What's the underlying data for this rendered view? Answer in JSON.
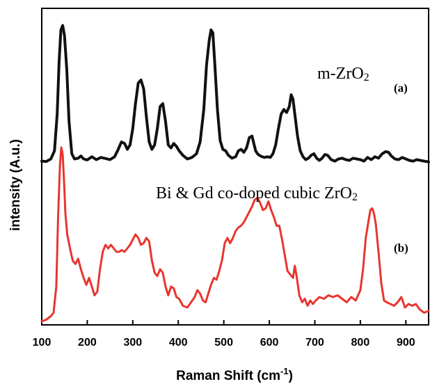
{
  "chart_data": {
    "type": "line",
    "xlabel": "Raman Shift (cm",
    "xlabel_sup": "-1",
    "xlabel_end": ")",
    "ylabel": "intensity (A.u.)",
    "xlim": [
      100,
      950
    ],
    "x_ticks": [
      "100",
      "200",
      "300",
      "400",
      "500",
      "600",
      "700",
      "800",
      "900"
    ],
    "y_ticks_shown": false,
    "annotations": {
      "a_name_main": "m-ZrO",
      "a_name_sub": "2",
      "a_label": "(a)",
      "b_name_main": "Bi & Gd co-doped cubic ZrO",
      "b_name_sub": "2",
      "b_label": "(b)"
    },
    "series": [
      {
        "color": "#111111",
        "x": [
          100,
          110,
          120,
          128,
          134,
          138,
          142,
          146,
          150,
          155,
          160,
          166,
          172,
          180,
          186,
          192,
          200,
          210,
          220,
          230,
          240,
          250,
          260,
          268,
          275,
          282,
          288,
          294,
          300,
          306,
          312,
          318,
          324,
          330,
          336,
          342,
          348,
          354,
          360,
          366,
          372,
          378,
          384,
          390,
          396,
          402,
          410,
          420,
          430,
          440,
          448,
          456,
          462,
          468,
          472,
          476,
          480,
          486,
          492,
          498,
          504,
          510,
          518,
          526,
          532,
          538,
          544,
          550,
          556,
          562,
          566,
          570,
          574,
          578,
          584,
          590,
          596,
          602,
          608,
          614,
          620,
          626,
          632,
          638,
          644,
          648,
          652,
          656,
          662,
          668,
          674,
          680,
          686,
          692,
          698,
          704,
          710,
          716,
          722,
          728,
          736,
          744,
          752,
          760,
          768,
          776,
          784,
          792,
          800,
          808,
          816,
          824,
          832,
          840,
          848,
          856,
          862,
          868,
          876,
          884,
          892,
          900,
          908,
          916,
          924,
          932,
          940,
          950
        ],
        "y": [
          0.03,
          0.028,
          0.045,
          0.1,
          0.35,
          0.7,
          0.92,
          0.95,
          0.88,
          0.65,
          0.3,
          0.08,
          0.045,
          0.05,
          0.065,
          0.045,
          0.038,
          0.06,
          0.04,
          0.055,
          0.048,
          0.04,
          0.06,
          0.11,
          0.16,
          0.15,
          0.11,
          0.14,
          0.25,
          0.42,
          0.56,
          0.58,
          0.52,
          0.33,
          0.16,
          0.11,
          0.14,
          0.25,
          0.4,
          0.42,
          0.3,
          0.14,
          0.12,
          0.15,
          0.13,
          0.1,
          0.07,
          0.045,
          0.055,
          0.08,
          0.16,
          0.38,
          0.68,
          0.85,
          0.92,
          0.9,
          0.7,
          0.38,
          0.17,
          0.11,
          0.1,
          0.07,
          0.05,
          0.06,
          0.1,
          0.11,
          0.09,
          0.12,
          0.19,
          0.2,
          0.15,
          0.1,
          0.08,
          0.07,
          0.06,
          0.055,
          0.06,
          0.055,
          0.08,
          0.14,
          0.25,
          0.35,
          0.38,
          0.36,
          0.4,
          0.48,
          0.45,
          0.35,
          0.2,
          0.1,
          0.06,
          0.04,
          0.05,
          0.07,
          0.08,
          0.05,
          0.035,
          0.05,
          0.075,
          0.07,
          0.04,
          0.03,
          0.045,
          0.05,
          0.04,
          0.035,
          0.05,
          0.045,
          0.04,
          0.03,
          0.055,
          0.04,
          0.06,
          0.05,
          0.08,
          0.095,
          0.09,
          0.065,
          0.045,
          0.04,
          0.055,
          0.045,
          0.035,
          0.03,
          0.04,
          0.035,
          0.03,
          0.025
        ]
      },
      {
        "color": "#e8352f",
        "x": [
          100,
          110,
          120,
          126,
          132,
          136,
          140,
          143,
          146,
          149,
          152,
          156,
          162,
          168,
          174,
          180,
          186,
          192,
          198,
          204,
          210,
          216,
          222,
          228,
          234,
          240,
          246,
          252,
          258,
          264,
          270,
          276,
          282,
          288,
          294,
          300,
          306,
          312,
          318,
          324,
          330,
          336,
          342,
          348,
          354,
          360,
          366,
          372,
          378,
          384,
          390,
          396,
          402,
          410,
          420,
          428,
          436,
          442,
          448,
          454,
          460,
          466,
          472,
          478,
          484,
          490,
          496,
          502,
          508,
          514,
          520,
          526,
          532,
          538,
          544,
          550,
          556,
          562,
          568,
          574,
          580,
          586,
          592,
          598,
          604,
          610,
          616,
          622,
          628,
          634,
          640,
          646,
          652,
          656,
          660,
          666,
          672,
          678,
          684,
          690,
          696,
          702,
          710,
          720,
          730,
          740,
          750,
          760,
          770,
          780,
          790,
          800,
          806,
          812,
          818,
          822,
          826,
          830,
          834,
          840,
          846,
          852,
          858,
          866,
          874,
          882,
          890,
          898,
          906,
          914,
          922,
          930,
          940,
          950
        ],
        "y": [
          0.0,
          0.01,
          0.03,
          0.05,
          0.2,
          0.6,
          0.9,
          1.0,
          0.96,
          0.8,
          0.62,
          0.5,
          0.42,
          0.35,
          0.33,
          0.36,
          0.3,
          0.25,
          0.21,
          0.25,
          0.2,
          0.15,
          0.17,
          0.3,
          0.4,
          0.44,
          0.42,
          0.44,
          0.42,
          0.4,
          0.4,
          0.41,
          0.4,
          0.42,
          0.44,
          0.47,
          0.5,
          0.48,
          0.44,
          0.45,
          0.48,
          0.46,
          0.35,
          0.28,
          0.26,
          0.3,
          0.28,
          0.2,
          0.15,
          0.2,
          0.19,
          0.14,
          0.13,
          0.09,
          0.08,
          0.11,
          0.14,
          0.18,
          0.16,
          0.12,
          0.11,
          0.16,
          0.21,
          0.25,
          0.24,
          0.29,
          0.35,
          0.45,
          0.48,
          0.45,
          0.48,
          0.52,
          0.54,
          0.55,
          0.57,
          0.6,
          0.63,
          0.66,
          0.7,
          0.71,
          0.68,
          0.64,
          0.65,
          0.69,
          0.64,
          0.6,
          0.55,
          0.55,
          0.47,
          0.38,
          0.29,
          0.27,
          0.25,
          0.32,
          0.26,
          0.15,
          0.11,
          0.13,
          0.09,
          0.12,
          0.1,
          0.12,
          0.14,
          0.13,
          0.15,
          0.14,
          0.15,
          0.13,
          0.11,
          0.14,
          0.12,
          0.18,
          0.3,
          0.48,
          0.58,
          0.64,
          0.65,
          0.62,
          0.56,
          0.4,
          0.22,
          0.12,
          0.11,
          0.1,
          0.09,
          0.11,
          0.14,
          0.08,
          0.1,
          0.09,
          0.1,
          0.07,
          0.05,
          0.06
        ]
      }
    ]
  }
}
